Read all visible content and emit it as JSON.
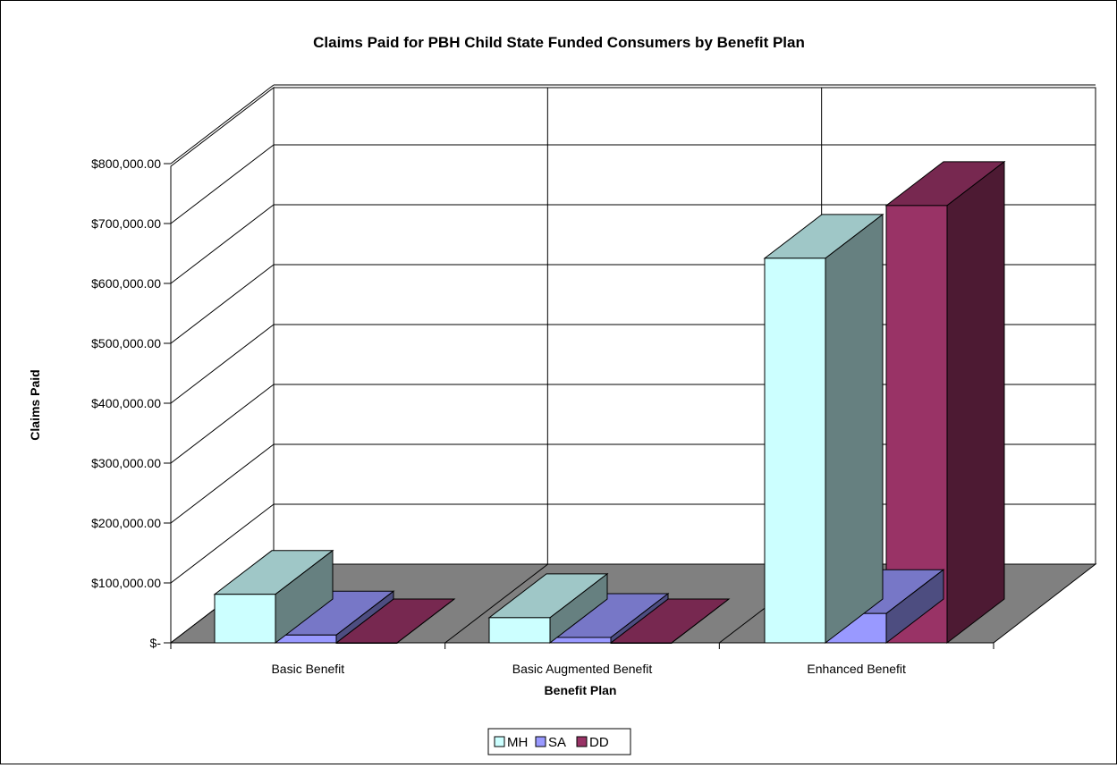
{
  "chart_data": {
    "type": "bar",
    "title": "Claims Paid for PBH Child State Funded Consumers by Benefit Plan",
    "xlabel": "Benefit Plan",
    "ylabel": "Claims Paid",
    "categories": [
      "Basic Benefit",
      "Basic Augmented Benefit",
      "Enhanced Benefit"
    ],
    "series": [
      {
        "name": "MH",
        "values": [
          81000,
          42000,
          642000
        ],
        "color": "#ccffff"
      },
      {
        "name": "SA",
        "values": [
          13000,
          9000,
          49000
        ],
        "color": "#9999ff"
      },
      {
        "name": "DD",
        "values": [
          0,
          0,
          730000
        ],
        "color": "#993366"
      }
    ],
    "y_ticks": [
      "$-",
      "$100,000.00",
      "$200,000.00",
      "$300,000.00",
      "$400,000.00",
      "$500,000.00",
      "$600,000.00",
      "$700,000.00",
      "$800,000.00"
    ],
    "ylim": [
      0,
      800000
    ],
    "grid": true,
    "three_d": true,
    "legend_position": "bottom",
    "wall_color": "#ffffff",
    "floor_color": "#808080"
  }
}
